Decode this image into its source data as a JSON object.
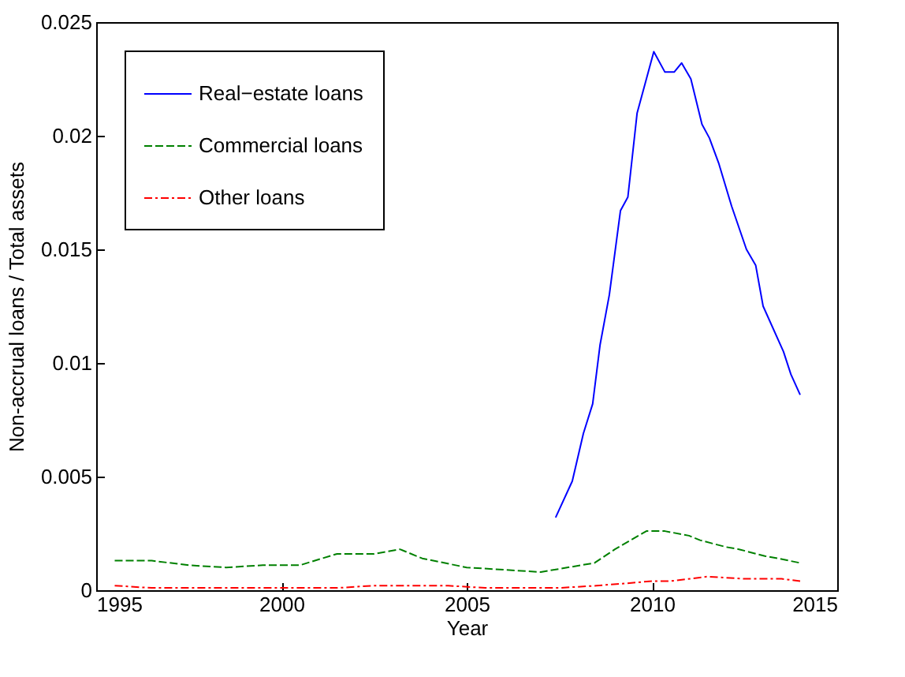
{
  "chart_data": {
    "type": "line",
    "xlabel": "Year",
    "ylabel": "Non-accrual loans / Total assets",
    "xlim": [
      1995,
      2015
    ],
    "xticks": [
      1995,
      2000,
      2005,
      2010,
      2015
    ],
    "ylim": [
      0,
      0.025
    ],
    "yticks": [
      0,
      0.005,
      0.01,
      0.015,
      0.02,
      0.025
    ],
    "grid": false,
    "legend": "top left",
    "series": [
      {
        "name": "Real−estate loans",
        "color": "#0000ff",
        "line_style": "solid",
        "x": [
          2007.4,
          2007.85,
          2008.15,
          2008.4,
          2008.6,
          2008.85,
          2009.15,
          2009.35,
          2009.6,
          2010.05,
          2010.35,
          2010.6,
          2010.8,
          2011.05,
          2011.35,
          2011.55,
          2011.8,
          2012.15,
          2012.55,
          2012.8,
          2013.0,
          2013.55,
          2013.75,
          2014.0
        ],
        "values": [
          0.0032,
          0.0048,
          0.0069,
          0.0082,
          0.0108,
          0.013,
          0.0167,
          0.0173,
          0.021,
          0.0237,
          0.0228,
          0.0228,
          0.0232,
          0.0225,
          0.0205,
          0.0199,
          0.0188,
          0.0169,
          0.015,
          0.0143,
          0.0125,
          0.0105,
          0.0095,
          0.0086
        ]
      },
      {
        "name": "Commercial loans",
        "color": "#008000",
        "line_style": "dashed",
        "x": [
          1995.5,
          1996.5,
          1997.5,
          1998.5,
          1999.5,
          2000.5,
          2001.5,
          2002.5,
          2003.2,
          2003.8,
          2005,
          2006,
          2007,
          2008.45,
          2009.0,
          2009.85,
          2010.35,
          2011.0,
          2011.3,
          2012.0,
          2012.35,
          2013.05,
          2013.4,
          2014.0
        ],
        "values": [
          0.0013,
          0.0013,
          0.0011,
          0.001,
          0.0011,
          0.0011,
          0.0016,
          0.0016,
          0.0018,
          0.0014,
          0.001,
          0.0009,
          0.0008,
          0.0012,
          0.0018,
          0.0026,
          0.0026,
          0.0024,
          0.0022,
          0.0019,
          0.0018,
          0.0015,
          0.0014,
          0.0012
        ]
      },
      {
        "name": "Other loans",
        "color": "#ff0000",
        "line_style": "dashdot",
        "x": [
          1995.5,
          1996.5,
          1997.5,
          1998.5,
          1999.5,
          2000.5,
          2001.5,
          2002.5,
          2003.5,
          2004.5,
          2005.5,
          2006.5,
          2007.5,
          2008.5,
          2009.3,
          2010.0,
          2010.5,
          2011.5,
          2012.5,
          2013.5,
          2014.0
        ],
        "values": [
          0.0002,
          0.0001,
          0.0001,
          0.0001,
          0.0001,
          0.0001,
          0.0001,
          0.0002,
          0.0002,
          0.0002,
          0.0001,
          0.0001,
          0.0001,
          0.0002,
          0.0003,
          0.0004,
          0.0004,
          0.0006,
          0.0005,
          0.0005,
          0.0004
        ]
      }
    ]
  }
}
